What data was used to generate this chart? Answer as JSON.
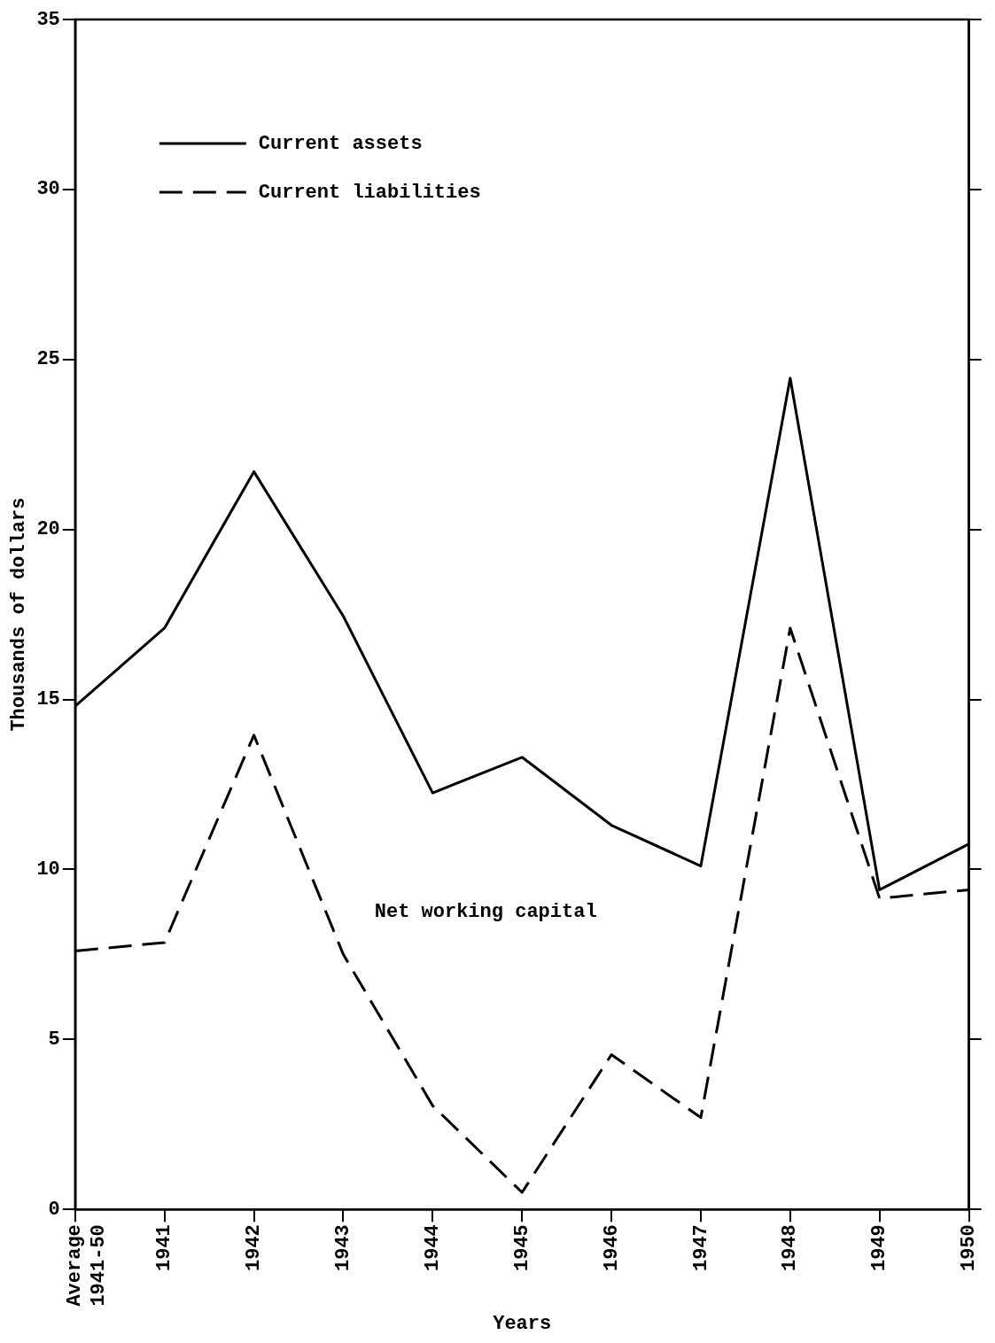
{
  "chart_data": {
    "type": "line",
    "xlabel": "Years",
    "ylabel": "Thousands of dollars",
    "categories": [
      "Average 1941-50",
      "1941",
      "1942",
      "1943",
      "1944",
      "1945",
      "1946",
      "1947",
      "1948",
      "1949",
      "1950"
    ],
    "series": [
      {
        "name": "Current assets",
        "color": "#000000",
        "line_style": "solid",
        "values": [
          14.8,
          17.1,
          21.7,
          17.45,
          12.25,
          13.3,
          11.3,
          10.1,
          24.45,
          9.4,
          10.75
        ]
      },
      {
        "name": "Current liabilities",
        "color": "#000000",
        "line_style": "dashed",
        "values": [
          7.6,
          7.85,
          13.95,
          7.5,
          3.05,
          0.5,
          4.55,
          2.7,
          17.1,
          9.15,
          9.4
        ]
      }
    ],
    "annotations": [
      "Net working capital"
    ],
    "ylim": [
      0,
      35
    ],
    "yticks": [
      0,
      5,
      10,
      15,
      20,
      25,
      30,
      35
    ],
    "grid": false,
    "legend": "top left",
    "marker": "none"
  }
}
